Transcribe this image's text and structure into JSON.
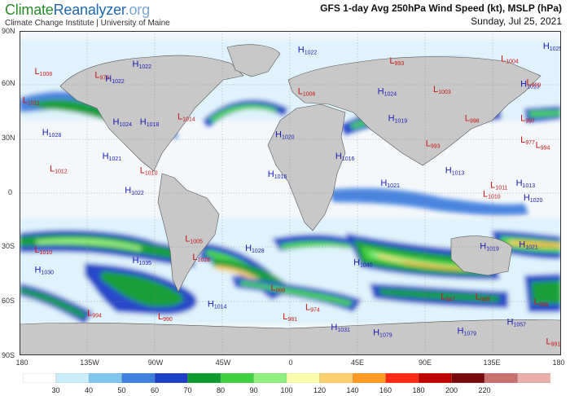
{
  "header": {
    "brand_part1": "Climate",
    "brand_part2": "Reanalyzer",
    "brand_part3": ".org",
    "affiliation": "Climate Change Institute | University of Maine",
    "title": "GFS 1-day Avg 250hPa Wind Speed (kt), MSLP (hPa)",
    "date": "Sunday, Jul 25, 2021"
  },
  "axes": {
    "lat_labels": [
      "90N",
      "60N",
      "30N",
      "0",
      "30S",
      "60S",
      "90S"
    ],
    "lon_labels": [
      "180",
      "135W",
      "90W",
      "45W",
      "0",
      "45E",
      "90E",
      "135E",
      "180"
    ]
  },
  "colorbar": {
    "labels": [
      "30",
      "40",
      "50",
      "60",
      "70",
      "80",
      "90",
      "100",
      "120",
      "140",
      "160",
      "180",
      "200",
      "220"
    ],
    "colors": [
      "#ffffff",
      "#c8ecfb",
      "#7fc6ee",
      "#3f7fde",
      "#1f3fc8",
      "#0f9a2f",
      "#3fcf3f",
      "#8ff07f",
      "#ffffb0",
      "#ffd070",
      "#ff9a20",
      "#ff2a10",
      "#c00000",
      "#7a0a0a",
      "#c87070",
      "#e8b0a8"
    ]
  },
  "pressure_centers": [
    {
      "type": "L",
      "value": "1008",
      "lon": -170,
      "lat": 66
    },
    {
      "type": "L",
      "value": "1011",
      "lon": -178,
      "lat": 50
    },
    {
      "type": "H",
      "value": "1028",
      "lon": -165,
      "lat": 32
    },
    {
      "type": "L",
      "value": "1012",
      "lon": -160,
      "lat": 12
    },
    {
      "type": "L",
      "value": "978",
      "lon": -130,
      "lat": 64
    },
    {
      "type": "H",
      "value": "1022",
      "lon": -105,
      "lat": 70
    },
    {
      "type": "H",
      "value": "1022",
      "lon": -123,
      "lat": 62
    },
    {
      "type": "H",
      "value": "1024",
      "lon": -118,
      "lat": 38
    },
    {
      "type": "H",
      "value": "1018",
      "lon": -100,
      "lat": 38
    },
    {
      "type": "L",
      "value": "1014",
      "lon": -75,
      "lat": 41
    },
    {
      "type": "H",
      "value": "1021",
      "lon": -125,
      "lat": 19
    },
    {
      "type": "L",
      "value": "1010",
      "lon": -100,
      "lat": 11
    },
    {
      "type": "H",
      "value": "1022",
      "lon": -110,
      "lat": 0
    },
    {
      "type": "H",
      "value": "1022",
      "lon": 5,
      "lat": 78
    },
    {
      "type": "L",
      "value": "1006",
      "lon": 5,
      "lat": 55
    },
    {
      "type": "H",
      "value": "1020",
      "lon": -10,
      "lat": 31
    },
    {
      "type": "H",
      "value": "1016",
      "lon": 30,
      "lat": 19
    },
    {
      "type": "H",
      "value": "1016",
      "lon": -15,
      "lat": 9
    },
    {
      "type": "L",
      "value": "993",
      "lon": 66,
      "lat": 72
    },
    {
      "type": "L",
      "value": "1003",
      "lon": 95,
      "lat": 56
    },
    {
      "type": "H",
      "value": "1024",
      "lon": 58,
      "lat": 55
    },
    {
      "type": "H",
      "value": "1019",
      "lon": 65,
      "lat": 40
    },
    {
      "type": "L",
      "value": "993",
      "lon": 90,
      "lat": 26
    },
    {
      "type": "H",
      "value": "1013",
      "lon": 103,
      "lat": 11
    },
    {
      "type": "H",
      "value": "1021",
      "lon": 60,
      "lat": 4
    },
    {
      "type": "L",
      "value": "998",
      "lon": 116,
      "lat": 40
    },
    {
      "type": "L",
      "value": "997",
      "lon": 153,
      "lat": 40
    },
    {
      "type": "L",
      "value": "977",
      "lon": 153,
      "lat": 28
    },
    {
      "type": "L",
      "value": "994",
      "lon": 163,
      "lat": 25
    },
    {
      "type": "L",
      "value": "1004",
      "lon": 140,
      "lat": 73
    },
    {
      "type": "H",
      "value": "1025",
      "lon": 168,
      "lat": 80
    },
    {
      "type": "H",
      "value": "1013",
      "lon": 153,
      "lat": 59
    },
    {
      "type": "L",
      "value": "999",
      "lon": 157,
      "lat": 60
    },
    {
      "type": "L",
      "value": "1011",
      "lon": 133,
      "lat": 3
    },
    {
      "type": "H",
      "value": "1013",
      "lon": 150,
      "lat": 4
    },
    {
      "type": "L",
      "value": "1010",
      "lon": 128,
      "lat": -2
    },
    {
      "type": "H",
      "value": "1020",
      "lon": 155,
      "lat": -4
    },
    {
      "type": "L",
      "value": "1010",
      "lon": -170,
      "lat": -33
    },
    {
      "type": "H",
      "value": "1030",
      "lon": -170,
      "lat": -44
    },
    {
      "type": "H",
      "value": "1035",
      "lon": -105,
      "lat": -39
    },
    {
      "type": "L",
      "value": "1005",
      "lon": -70,
      "lat": -27
    },
    {
      "type": "H",
      "value": "1028",
      "lon": -30,
      "lat": -32
    },
    {
      "type": "L",
      "value": "1028",
      "lon": -65,
      "lat": -37
    },
    {
      "type": "H",
      "value": "1040",
      "lon": 42,
      "lat": -40
    },
    {
      "type": "H",
      "value": "1019",
      "lon": 126,
      "lat": -31
    },
    {
      "type": "H",
      "value": "1021",
      "lon": 152,
      "lat": -30
    },
    {
      "type": "L",
      "value": "968",
      "lon": -13,
      "lat": -54
    },
    {
      "type": "L",
      "value": "974",
      "lon": 10,
      "lat": -65
    },
    {
      "type": "L",
      "value": "981",
      "lon": -5,
      "lat": -70
    },
    {
      "type": "H",
      "value": "1014",
      "lon": -55,
      "lat": -63
    },
    {
      "type": "L",
      "value": "994",
      "lon": -135,
      "lat": -68
    },
    {
      "type": "L",
      "value": "990",
      "lon": -88,
      "lat": -70
    },
    {
      "type": "L",
      "value": "947",
      "lon": 100,
      "lat": -59
    },
    {
      "type": "L",
      "value": "948",
      "lon": 123,
      "lat": -59
    },
    {
      "type": "L",
      "value": "956",
      "lon": 162,
      "lat": -62
    },
    {
      "type": "H",
      "value": "1031",
      "lon": 27,
      "lat": -76
    },
    {
      "type": "H",
      "value": "1079",
      "lon": 55,
      "lat": -79
    },
    {
      "type": "H",
      "value": "1079",
      "lon": 111,
      "lat": -78
    },
    {
      "type": "H",
      "value": "1057",
      "lon": 144,
      "lat": -73
    },
    {
      "type": "L",
      "value": "991",
      "lon": 170,
      "lat": -84
    }
  ]
}
